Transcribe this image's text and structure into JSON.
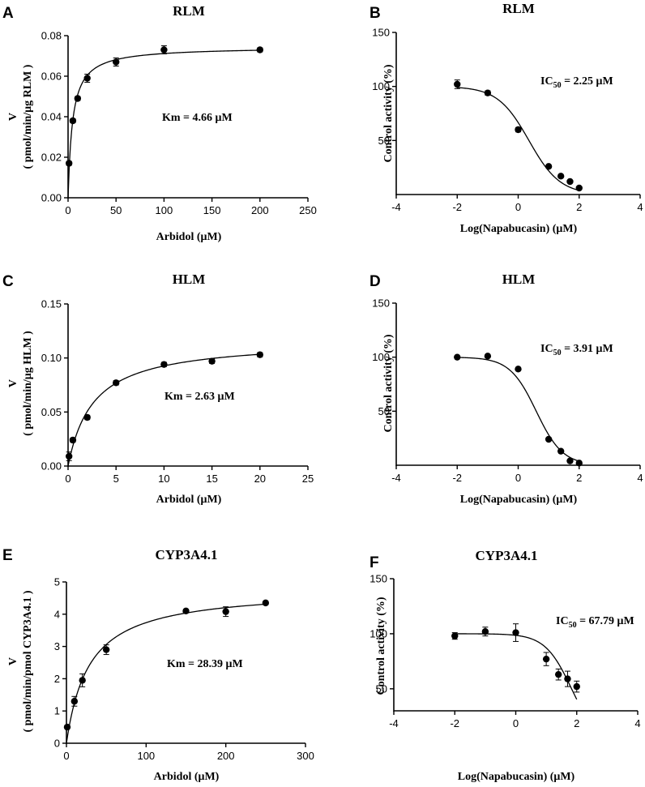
{
  "chart_data": [
    {
      "id": "A",
      "type": "scatter",
      "letter": "A",
      "title": "RLM",
      "xlabel": "Arbidol (μM)",
      "ylabel_lines": [
        "V",
        "( pmol/min/μg RLM )"
      ],
      "xlim": [
        0,
        250
      ],
      "ylim": [
        0,
        0.08
      ],
      "xticks": [
        "0",
        "50",
        "100",
        "150",
        "200",
        "250"
      ],
      "yticks": [
        "0.00",
        "0.02",
        "0.04",
        "0.06",
        "0.08"
      ],
      "points": [
        [
          1,
          0.017
        ],
        [
          5,
          0.038
        ],
        [
          10,
          0.049
        ],
        [
          20,
          0.059
        ],
        [
          50,
          0.067
        ],
        [
          100,
          0.073
        ],
        [
          200,
          0.073
        ]
      ],
      "errors": [
        0.001,
        0.001,
        0.001,
        0.002,
        0.002,
        0.002,
        0.001
      ],
      "fit": {
        "model": "mm",
        "vmax": 0.0745,
        "k": 4.66,
        "x_range": [
          0,
          200
        ]
      },
      "annotation": {
        "prefix": "Km = 4.66 μM",
        "sub": "",
        "suffix": ""
      }
    },
    {
      "id": "B",
      "type": "scatter",
      "letter": "B",
      "title": "RLM",
      "xlabel": "Log(Napabucasin) (μM)",
      "ylabel_lines": [
        "Control activity (%)"
      ],
      "xlim": [
        -4,
        4
      ],
      "ylim": [
        0,
        150
      ],
      "xticks": [
        "-4",
        "-2",
        "0",
        "2",
        "4"
      ],
      "yticks": [
        "50",
        "100",
        "150"
      ],
      "points": [
        [
          -2,
          102
        ],
        [
          -1,
          94
        ],
        [
          0,
          60
        ],
        [
          1,
          26
        ],
        [
          1.4,
          17
        ],
        [
          1.7,
          12
        ],
        [
          2,
          6
        ]
      ],
      "errors": [
        4,
        2,
        2,
        1,
        1,
        1,
        1
      ],
      "fit": {
        "model": "ic50",
        "top": 100,
        "bottom": 0,
        "logic50": 0.352,
        "hill": 0.85,
        "x_range": [
          -2,
          2
        ]
      },
      "annotation": {
        "prefix": "IC",
        "sub": "50",
        "suffix": " = 2.25 μM"
      }
    },
    {
      "id": "C",
      "type": "scatter",
      "letter": "C",
      "title": "HLM",
      "xlabel": "Arbidol (μM)",
      "ylabel_lines": [
        "V",
        "( pmol/min/μg HLM )"
      ],
      "xlim": [
        0,
        25
      ],
      "ylim": [
        0,
        0.15
      ],
      "xticks": [
        "0",
        "5",
        "10",
        "15",
        "20",
        "25"
      ],
      "yticks": [
        "0.00",
        "0.05",
        "0.10",
        "0.15"
      ],
      "points": [
        [
          0.1,
          0.009
        ],
        [
          0.5,
          0.024
        ],
        [
          2,
          0.045
        ],
        [
          5,
          0.077
        ],
        [
          10,
          0.094
        ],
        [
          15,
          0.097
        ],
        [
          20,
          0.103
        ]
      ],
      "errors": [
        0.004,
        0.002,
        0.002,
        0.002,
        0.002,
        0.002,
        0.002
      ],
      "fit": {
        "model": "mm",
        "vmax": 0.117,
        "k": 2.63,
        "x_range": [
          0,
          20
        ]
      },
      "annotation": {
        "prefix": "Km = 2.63 μM",
        "sub": "",
        "suffix": ""
      }
    },
    {
      "id": "D",
      "type": "scatter",
      "letter": "D",
      "title": "HLM",
      "xlabel": "Log(Napabucasin) (μM)",
      "ylabel_lines": [
        "Control activity (%)"
      ],
      "xlim": [
        -4,
        4
      ],
      "ylim": [
        0,
        150
      ],
      "xticks": [
        "-4",
        "-2",
        "0",
        "2",
        "4"
      ],
      "yticks": [
        "50",
        "100",
        "150"
      ],
      "points": [
        [
          -2,
          100
        ],
        [
          -1,
          101
        ],
        [
          0,
          89
        ],
        [
          1,
          24
        ],
        [
          1.4,
          13
        ],
        [
          1.7,
          4
        ],
        [
          2,
          2
        ]
      ],
      "errors": [
        1,
        1,
        1,
        1,
        1,
        1,
        1
      ],
      "fit": {
        "model": "ic50",
        "top": 100,
        "bottom": 0,
        "logic50": 0.592,
        "hill": 1.0,
        "x_range": [
          -2,
          2
        ]
      },
      "annotation": {
        "prefix": "IC",
        "sub": "50",
        "suffix": " = 3.91 μM"
      }
    },
    {
      "id": "E",
      "type": "scatter",
      "letter": "E",
      "title": "CYP3A4.1",
      "xlabel": "Arbidol (μM)",
      "ylabel_lines": [
        "V",
        "( pmol/min/pmol CYP3A4.1 )"
      ],
      "xlim": [
        0,
        300
      ],
      "ylim": [
        0,
        5
      ],
      "xticks": [
        "0",
        "100",
        "200",
        "300"
      ],
      "yticks": [
        "0",
        "1",
        "2",
        "3",
        "4",
        "5"
      ],
      "points": [
        [
          1,
          0.5
        ],
        [
          10,
          1.3
        ],
        [
          20,
          1.95
        ],
        [
          50,
          2.9
        ],
        [
          150,
          4.1
        ],
        [
          200,
          4.08
        ],
        [
          250,
          4.35
        ]
      ],
      "errors": [
        0.05,
        0.15,
        0.2,
        0.15,
        0.05,
        0.15,
        0.05
      ],
      "fit": {
        "model": "mm",
        "vmax": 4.8,
        "k": 28.39,
        "x_range": [
          0,
          250
        ]
      },
      "annotation": {
        "prefix": "Km = 28.39 μM",
        "sub": "",
        "suffix": ""
      }
    },
    {
      "id": "F",
      "type": "scatter",
      "letter": "F",
      "title": "CYP3A4.1",
      "xlabel": "Log(Napabucasin) (μM)",
      "ylabel_lines": [
        "Control activity (%)"
      ],
      "xlim": [
        -4,
        4
      ],
      "ylim": [
        30,
        150
      ],
      "xticks": [
        "-4",
        "-2",
        "0",
        "2",
        "4"
      ],
      "yticks": [
        "50",
        "100",
        "150"
      ],
      "points": [
        [
          -2,
          98
        ],
        [
          -1,
          102
        ],
        [
          0,
          101
        ],
        [
          1,
          77
        ],
        [
          1.4,
          63
        ],
        [
          1.7,
          59
        ],
        [
          2,
          52
        ]
      ],
      "errors": [
        3,
        4,
        8,
        6,
        5,
        7,
        5
      ],
      "fit": {
        "model": "ic50",
        "top": 100,
        "bottom": 0,
        "logic50": 1.831,
        "hill": 1.0,
        "x_range": [
          -2,
          2
        ]
      },
      "annotation": {
        "prefix": "IC",
        "sub": "50",
        "suffix": " = 67.79 μM"
      }
    }
  ]
}
